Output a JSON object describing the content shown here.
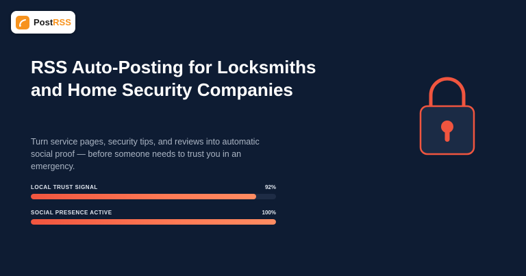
{
  "brand": {
    "name_part1": "Post",
    "name_part2": "RSS",
    "icon": "rss-feed-icon",
    "accent_color": "#f7931e"
  },
  "hero": {
    "title": "RSS Auto-Posting for Locksmiths and Home Security Companies",
    "subtitle": "Turn service pages, security tips, and reviews into automatic social proof — before someone needs to trust you in an emergency.",
    "illustration": "padlock-icon",
    "illustration_color": "#f0553f"
  },
  "metrics": [
    {
      "label": "LOCAL TRUST SIGNAL",
      "value_text": "92%",
      "fraction": 0.92
    },
    {
      "label": "SOCIAL PRESENCE ACTIVE",
      "value_text": "100%",
      "fraction": 1.0
    }
  ],
  "colors": {
    "background": "#0e1c33",
    "bar_fill": "#f0553f",
    "bar_track": "#1e2c45"
  }
}
